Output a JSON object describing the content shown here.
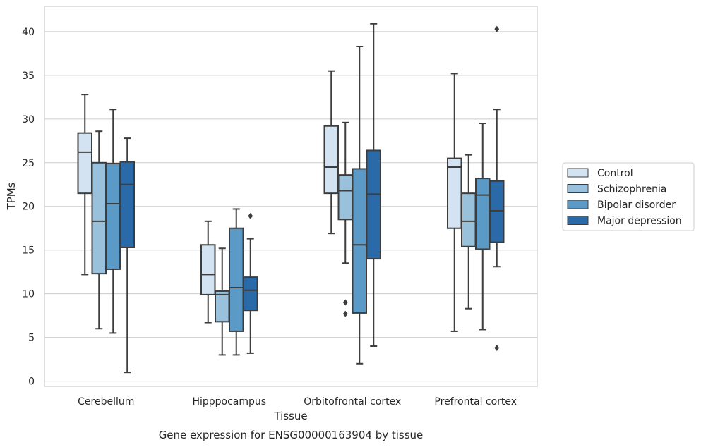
{
  "chart_data": {
    "type": "box",
    "xlabel": "Tissue",
    "ylabel": "TPMs",
    "caption": "Gene expression for ENSG00000163904 by tissue",
    "ylim": [
      -0.6,
      42.9
    ],
    "yticks": [
      0,
      5,
      10,
      15,
      20,
      25,
      30,
      35,
      40
    ],
    "grid": "horizontal",
    "legend_position": "right",
    "categories": [
      "Cerebellum",
      "Hipppocampus",
      "Orbitofrontal cortex",
      "Prefrontal cortex"
    ],
    "series": [
      {
        "name": "Control",
        "color": "#d4e3f1",
        "boxes": [
          {
            "whisker_low": 12.2,
            "q1": 21.5,
            "median": 26.2,
            "q3": 28.4,
            "whisker_high": 32.8,
            "outliers": []
          },
          {
            "whisker_low": 6.7,
            "q1": 9.9,
            "median": 12.2,
            "q3": 15.6,
            "whisker_high": 18.3,
            "outliers": []
          },
          {
            "whisker_low": 16.9,
            "q1": 21.5,
            "median": 24.5,
            "q3": 29.2,
            "whisker_high": 35.5,
            "outliers": []
          },
          {
            "whisker_low": 5.7,
            "q1": 17.5,
            "median": 24.5,
            "q3": 25.5,
            "whisker_high": 35.2,
            "outliers": []
          }
        ]
      },
      {
        "name": "Schizophrenia",
        "color": "#9ac1db",
        "boxes": [
          {
            "whisker_low": 6.0,
            "q1": 12.3,
            "median": 18.3,
            "q3": 25.0,
            "whisker_high": 28.6,
            "outliers": []
          },
          {
            "whisker_low": 3.0,
            "q1": 6.8,
            "median": 9.9,
            "q3": 10.3,
            "whisker_high": 15.2,
            "outliers": []
          },
          {
            "whisker_low": 13.5,
            "q1": 18.5,
            "median": 21.8,
            "q3": 23.6,
            "whisker_high": 29.6,
            "outliers": [
              9.0,
              7.7
            ]
          },
          {
            "whisker_low": 8.3,
            "q1": 15.4,
            "median": 18.3,
            "q3": 21.5,
            "whisker_high": 25.9,
            "outliers": []
          }
        ]
      },
      {
        "name": "Bipolar disorder",
        "color": "#5b9ac6",
        "boxes": [
          {
            "whisker_low": 5.5,
            "q1": 12.8,
            "median": 20.3,
            "q3": 24.9,
            "whisker_high": 31.1,
            "outliers": []
          },
          {
            "whisker_low": 3.0,
            "q1": 5.7,
            "median": 10.7,
            "q3": 17.5,
            "whisker_high": 19.7,
            "outliers": []
          },
          {
            "whisker_low": 2.0,
            "q1": 7.8,
            "median": 15.6,
            "q3": 24.3,
            "whisker_high": 38.3,
            "outliers": []
          },
          {
            "whisker_low": 5.9,
            "q1": 15.1,
            "median": 21.3,
            "q3": 23.2,
            "whisker_high": 29.5,
            "outliers": []
          }
        ]
      },
      {
        "name": "Major depression",
        "color": "#2a6aa8",
        "boxes": [
          {
            "whisker_low": 1.0,
            "q1": 15.3,
            "median": 22.5,
            "q3": 25.1,
            "whisker_high": 27.8,
            "outliers": []
          },
          {
            "whisker_low": 3.2,
            "q1": 8.1,
            "median": 10.4,
            "q3": 11.9,
            "whisker_high": 16.3,
            "outliers": [
              18.9
            ]
          },
          {
            "whisker_low": 4.0,
            "q1": 14.0,
            "median": 21.4,
            "q3": 26.4,
            "whisker_high": 40.9,
            "outliers": []
          },
          {
            "whisker_low": 13.1,
            "q1": 15.9,
            "median": 19.5,
            "q3": 22.9,
            "whisker_high": 31.1,
            "outliers": [
              40.3,
              3.8
            ]
          }
        ]
      }
    ]
  }
}
